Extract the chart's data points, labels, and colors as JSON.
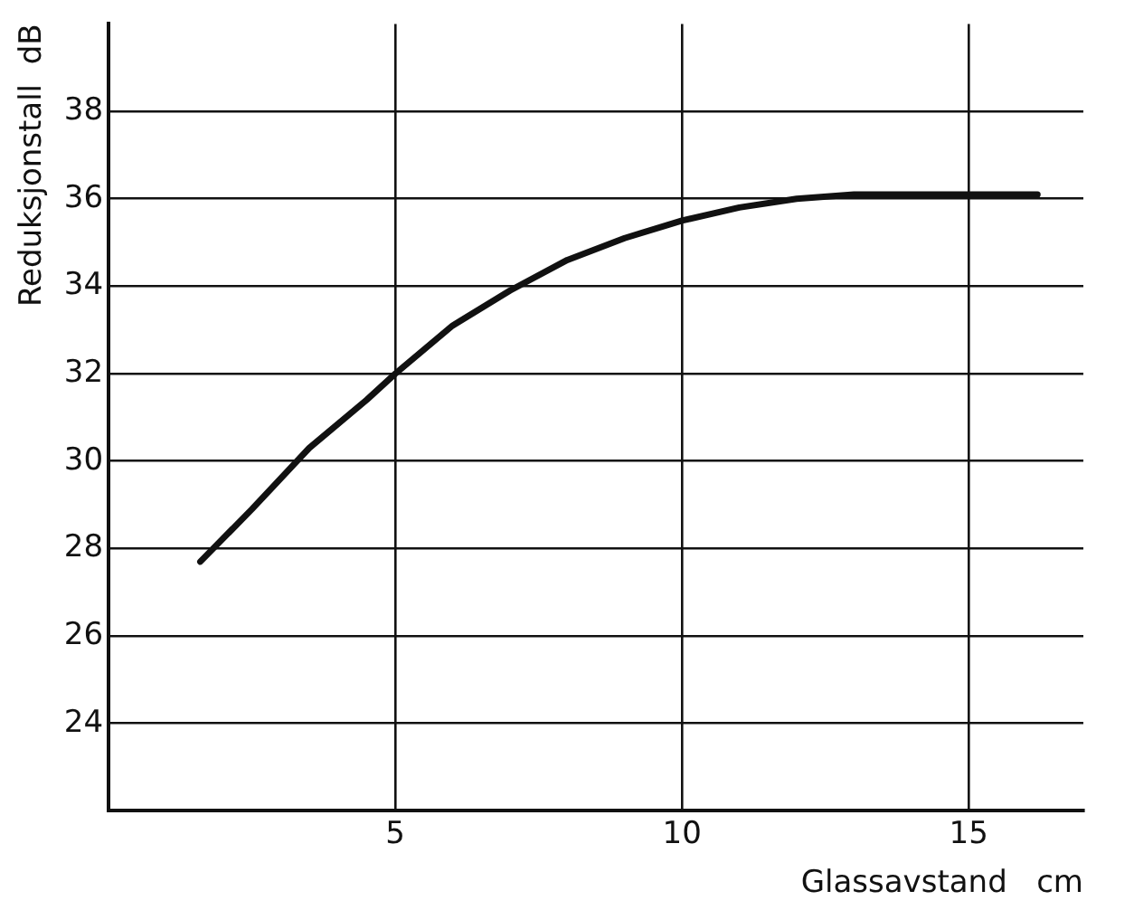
{
  "chart_data": {
    "type": "line",
    "xlabel": "Glassavstand   cm",
    "ylabel": "Reduksjonstall  dB",
    "x": [
      1.6,
      2.5,
      3.5,
      4.5,
      5,
      6,
      7,
      8,
      9,
      10,
      11,
      12,
      13,
      14,
      15,
      16.2
    ],
    "series": [
      {
        "color": "#111111",
        "values": [
          27.7,
          28.9,
          30.3,
          31.4,
          32.0,
          33.1,
          33.9,
          34.6,
          35.1,
          35.5,
          35.8,
          36.0,
          36.1,
          36.1,
          36.1,
          36.1
        ]
      }
    ],
    "xlim": [
      0,
      17
    ],
    "xticks": [
      5,
      10,
      15
    ],
    "ylim": [
      22,
      40
    ],
    "yticks": [
      24,
      26,
      28,
      30,
      32,
      34,
      36,
      38
    ],
    "grid": true,
    "legend": false,
    "marker": "none",
    "line_style": "solid"
  }
}
